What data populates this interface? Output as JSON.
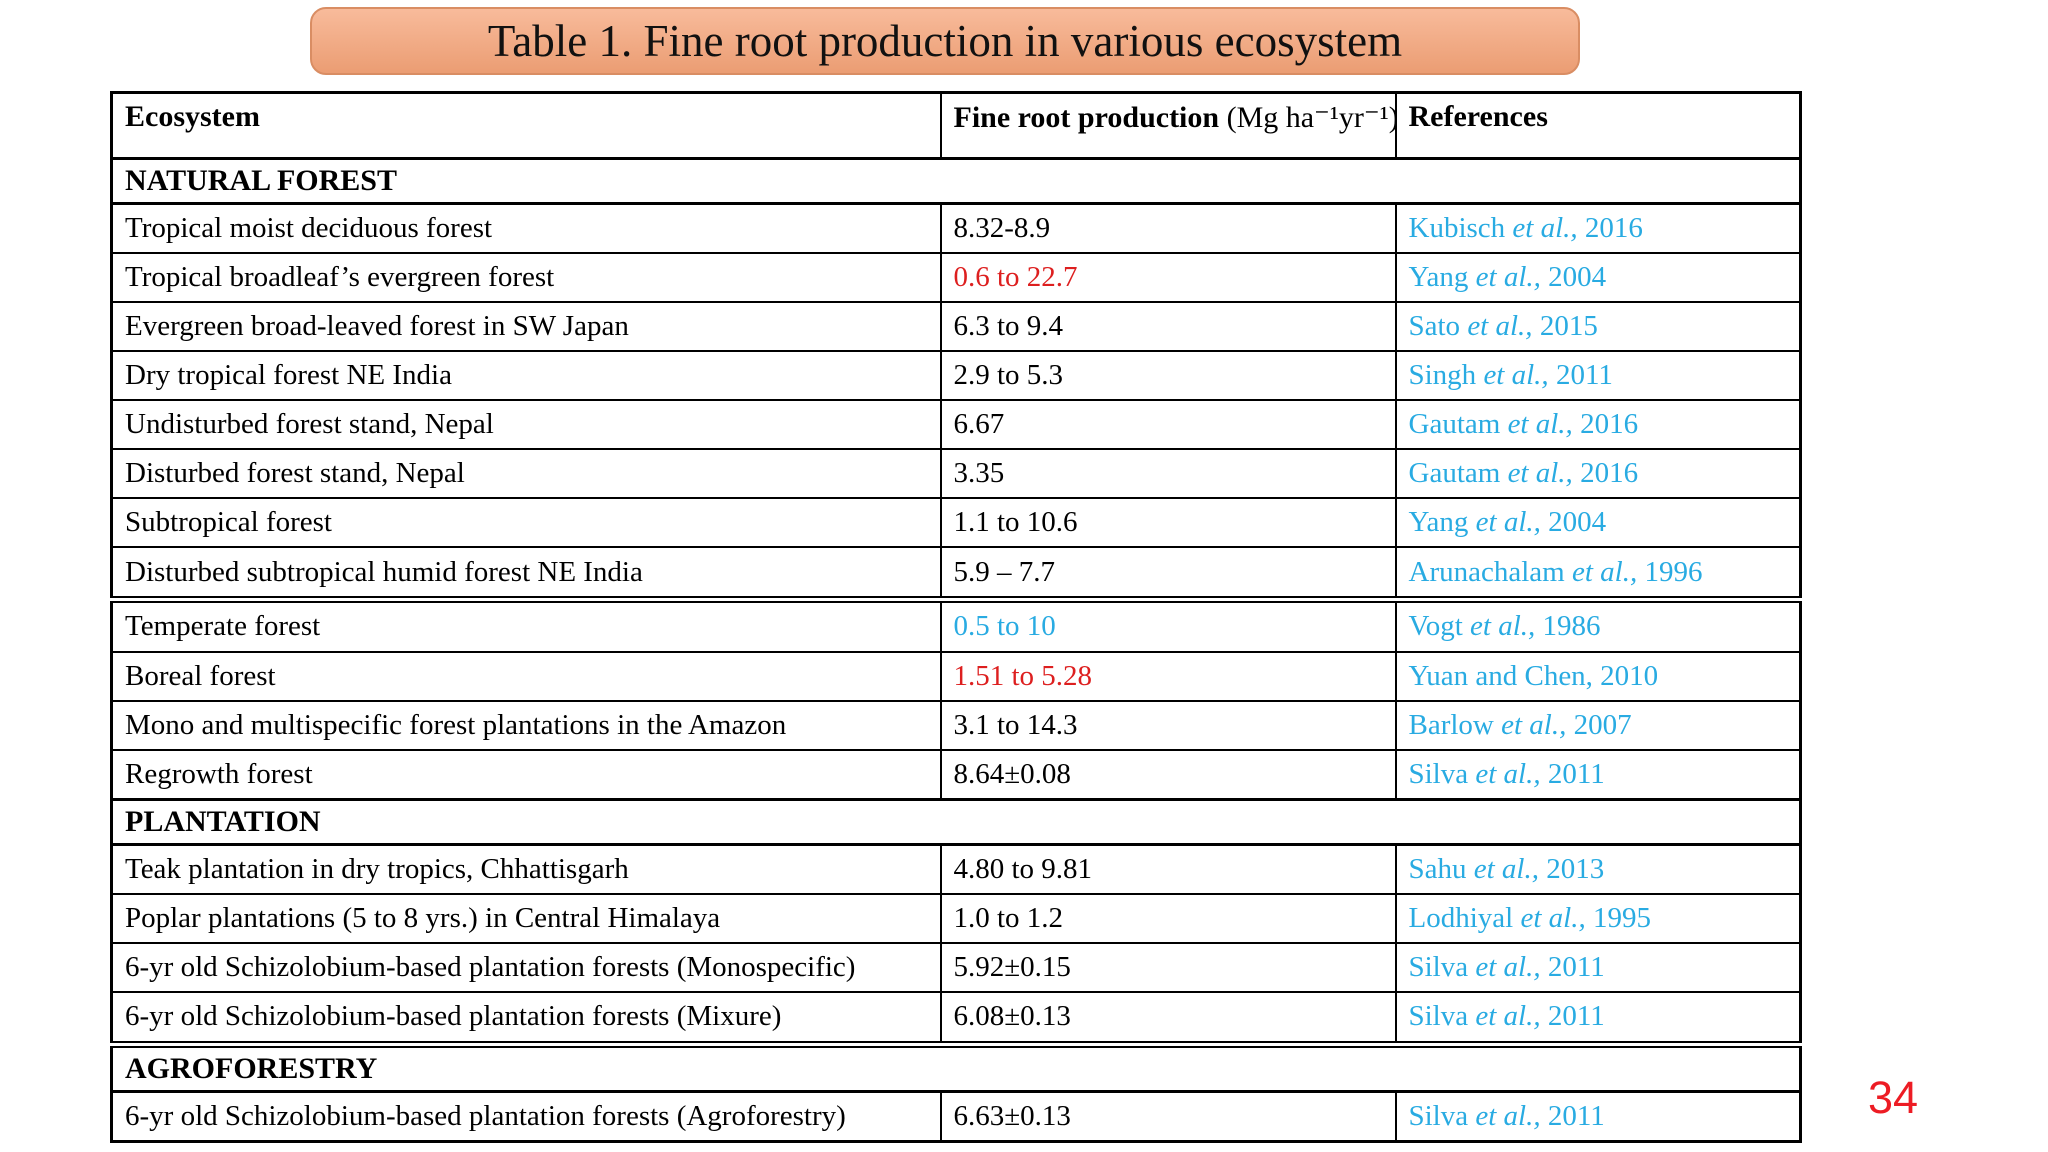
{
  "slide": {
    "title": "Table 1. Fine root production in various ecosystem",
    "page_number": "34"
  },
  "colors": {
    "title_bg_top": "#f8bb9b",
    "title_bg_bottom": "#eb9d73",
    "title_border": "#d98d63",
    "ref_blue": "#29abe2",
    "value_red": "#dd1f1f",
    "page_number_red": "#ed1c24",
    "table_border": "#000000"
  },
  "table": {
    "headers": {
      "ecosystem": "Ecosystem",
      "production_bold": "Fine root production ",
      "production_unit": "(Mg ha⁻¹yr⁻¹)",
      "references": "References"
    },
    "rows": [
      {
        "type": "section",
        "label": "NATURAL FOREST"
      },
      {
        "type": "data",
        "ecosystem": "Tropical moist deciduous forest",
        "value": "8.32-8.9",
        "value_color": "default",
        "ref_pre": "Kubisch ",
        "ref_it": "et al.,",
        "ref_post": " 2016"
      },
      {
        "type": "data",
        "ecosystem": "Tropical broadleaf’s evergreen forest",
        "value": "0.6 to 22.7",
        "value_color": "red",
        "ref_pre": "Yang ",
        "ref_it": "et al.,",
        "ref_post": " 2004"
      },
      {
        "type": "data",
        "ecosystem": "Evergreen broad-leaved forest in SW Japan",
        "value": "6.3 to 9.4",
        "value_color": "default",
        "ref_pre": "Sato ",
        "ref_it": "et al.,",
        "ref_post": " 2015"
      },
      {
        "type": "data",
        "ecosystem": "Dry tropical forest NE India",
        "value": "2.9 to 5.3",
        "value_color": "default",
        "ref_pre": "Singh ",
        "ref_it": "et al.,",
        "ref_post": " 2011"
      },
      {
        "type": "data",
        "ecosystem": "Undisturbed forest stand, Nepal",
        "value": "6.67",
        "value_color": "default",
        "ref_pre": "Gautam ",
        "ref_it": "et al.,",
        "ref_post": " 2016"
      },
      {
        "type": "data",
        "ecosystem": "Disturbed forest stand, Nepal",
        "value": "3.35",
        "value_color": "default",
        "ref_pre": "Gautam ",
        "ref_it": "et al.,",
        "ref_post": " 2016"
      },
      {
        "type": "data",
        "ecosystem": "Subtropical forest",
        "value": "1.1 to 10.6",
        "value_color": "default",
        "ref_pre": "Yang ",
        "ref_it": "et al.,",
        "ref_post": " 2004"
      },
      {
        "type": "data",
        "ecosystem": "Disturbed subtropical humid forest NE India",
        "value": "5.9 – 7.7",
        "value_color": "default",
        "ref_pre": "Arunachalam ",
        "ref_it": "et al.,",
        "ref_post": " 1996"
      },
      {
        "type": "data",
        "thick_top": true,
        "ecosystem": "Temperate forest",
        "value": "0.5 to 10",
        "value_color": "blue",
        "ref_pre": "Vogt ",
        "ref_it": "et al.,",
        "ref_post": " 1986"
      },
      {
        "type": "data",
        "ecosystem": "Boreal forest",
        "value": "1.51 to 5.28",
        "value_color": "red",
        "ref_pre": "Yuan and Chen, 2010",
        "ref_it": "",
        "ref_post": ""
      },
      {
        "type": "data",
        "ecosystem": "Mono and multispecific forest plantations in the Amazon",
        "value": "3.1 to 14.3",
        "value_color": "default",
        "ref_pre": "Barlow ",
        "ref_it": "et al.,",
        "ref_post": " 2007"
      },
      {
        "type": "data",
        "ecosystem": "Regrowth forest",
        "value": "8.64±0.08",
        "value_color": "default",
        "ref_pre": "Silva ",
        "ref_it": "et al.,",
        "ref_post": " 2011"
      },
      {
        "type": "section",
        "label": "PLANTATION"
      },
      {
        "type": "data",
        "ecosystem": "Teak plantation in dry tropics, Chhattisgarh",
        "value": "4.80 to 9.81",
        "value_color": "default",
        "ref_pre": "Sahu ",
        "ref_it": "et al.,",
        "ref_post": " 2013"
      },
      {
        "type": "data",
        "ecosystem": "Poplar plantations (5 to 8 yrs.) in Central Himalaya",
        "value": "1.0 to 1.2",
        "value_color": "default",
        "ref_pre": "Lodhiyal ",
        "ref_it": "et al.,",
        "ref_post": " 1995"
      },
      {
        "type": "data",
        "ecosystem": "6-yr old Schizolobium-based plantation forests (Monospecific)",
        "value": "5.92±0.15",
        "value_color": "default",
        "ref_pre": "Silva ",
        "ref_it": "et al.,",
        "ref_post": " 2011"
      },
      {
        "type": "data",
        "ecosystem": "6-yr old Schizolobium-based plantation forests (Mixure)",
        "value": "6.08±0.13",
        "value_color": "default",
        "ref_pre": "Silva ",
        "ref_it": "et al.,",
        "ref_post": " 2011"
      },
      {
        "type": "section",
        "thick_top": true,
        "label": "AGROFORESTRY"
      },
      {
        "type": "data",
        "ecosystem": "6-yr old Schizolobium-based plantation forests (Agroforestry)",
        "value": "6.63±0.13",
        "value_color": "default",
        "ref_pre": "Silva ",
        "ref_it": "et al.,",
        "ref_post": " 2011"
      }
    ]
  }
}
